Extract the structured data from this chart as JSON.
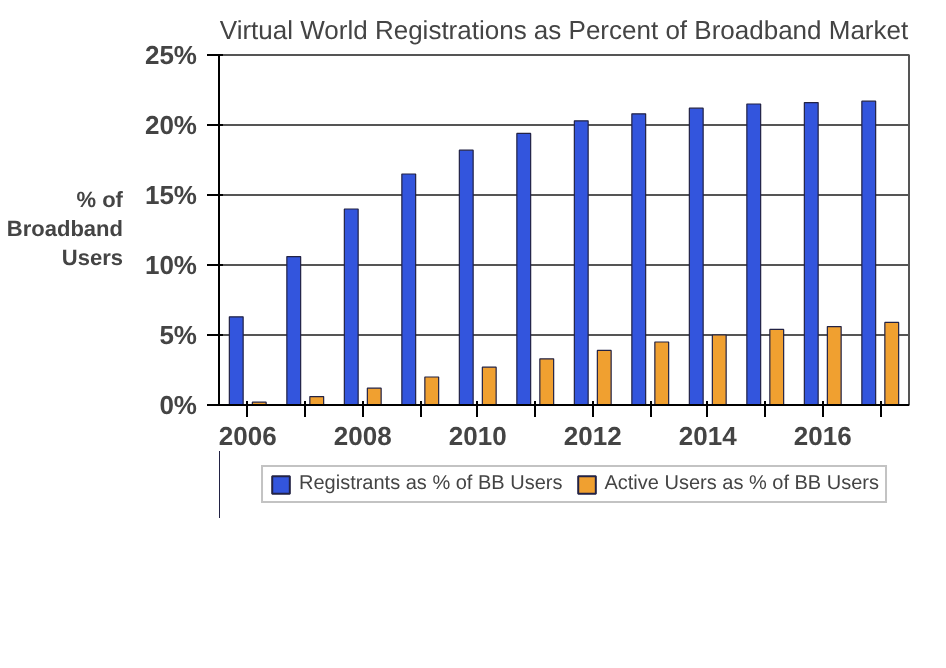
{
  "chart_data": {
    "type": "bar",
    "title": "Virtual World Registrations as Percent of Broadband Market",
    "ylabel": "% of Broadband Users",
    "categories": [
      "2006",
      null,
      "2008",
      null,
      "2010",
      null,
      "2012",
      null,
      "2014",
      null,
      "2016",
      null
    ],
    "series": [
      {
        "name": "Registrants as % of BB Users",
        "color": "#3355dd",
        "values": [
          6.3,
          10.6,
          14.0,
          16.5,
          18.2,
          19.4,
          20.3,
          20.8,
          21.2,
          21.5,
          21.6,
          21.7
        ]
      },
      {
        "name": "Active Users as % of BB Users",
        "color": "#f0a030",
        "values": [
          0.2,
          0.6,
          1.2,
          2.0,
          2.7,
          3.3,
          3.9,
          4.5,
          5.0,
          5.4,
          5.6,
          5.9
        ]
      }
    ],
    "ylim": [
      0,
      25
    ],
    "yticks": [
      {
        "value": 0,
        "label": "0%"
      },
      {
        "value": 5,
        "label": "5%"
      },
      {
        "value": 10,
        "label": "10%"
      },
      {
        "value": 15,
        "label": "15%"
      },
      {
        "value": 20,
        "label": "20%"
      },
      {
        "value": 25,
        "label": "25%"
      }
    ],
    "grid": "y",
    "legend": "bottom"
  }
}
